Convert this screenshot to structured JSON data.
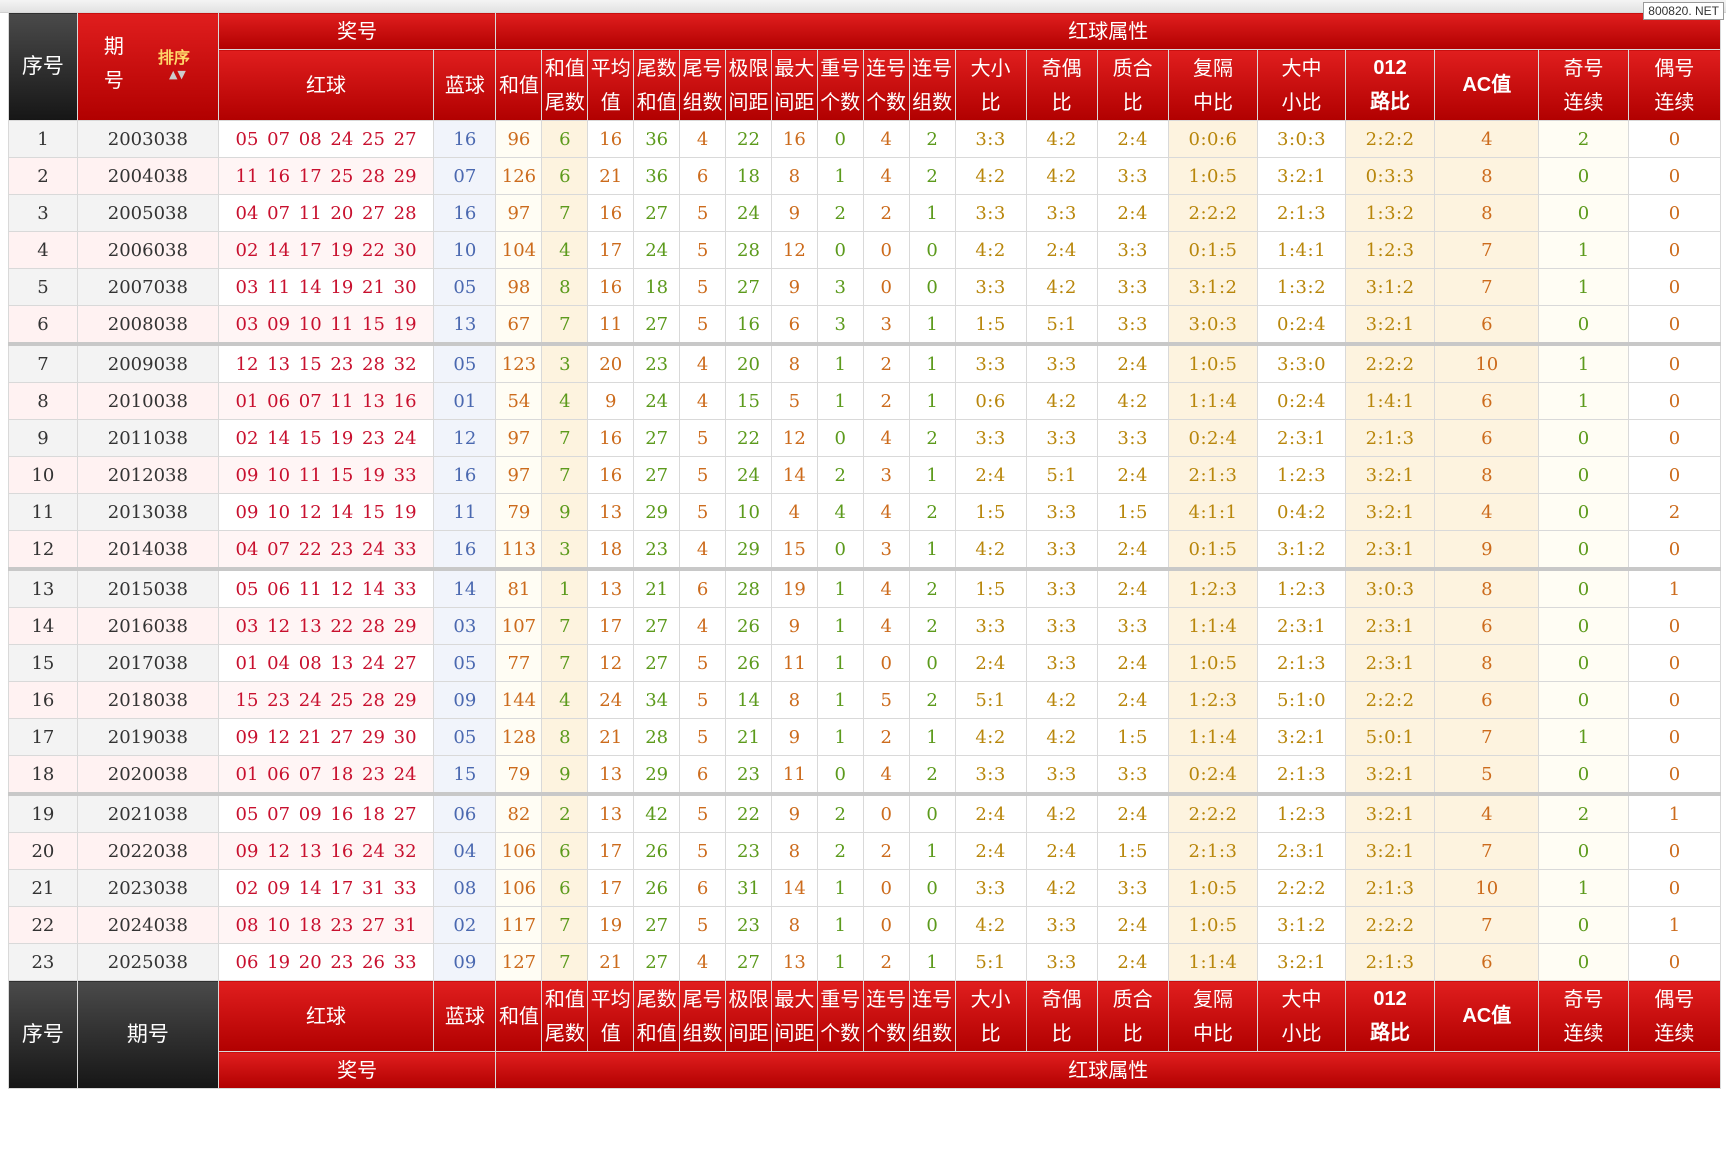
{
  "watermark": "800820. NET",
  "header": {
    "seq": "序号",
    "issue_top": "期",
    "issue_bottom": "号",
    "sort_label": "排序",
    "sort_arrows": "▲▼",
    "prize_group": "奖号",
    "attr_group": "红球属性",
    "red": "红球",
    "blue": "蓝球",
    "cols": [
      {
        "l1": "和值",
        "l2": ""
      },
      {
        "l1": "和值",
        "l2": "尾数"
      },
      {
        "l1": "平均",
        "l2": "值"
      },
      {
        "l1": "尾数",
        "l2": "和值"
      },
      {
        "l1": "尾号",
        "l2": "组数"
      },
      {
        "l1": "极限",
        "l2": "间距"
      },
      {
        "l1": "最大",
        "l2": "间距"
      },
      {
        "l1": "重号",
        "l2": "个数"
      },
      {
        "l1": "连号",
        "l2": "个数"
      },
      {
        "l1": "连号",
        "l2": "组数"
      },
      {
        "l1": "大小",
        "l2": "比"
      },
      {
        "l1": "奇偶",
        "l2": "比"
      },
      {
        "l1": "质合",
        "l2": "比"
      },
      {
        "l1": "复隔",
        "l2": "中比"
      },
      {
        "l1": "大中",
        "l2": "小比"
      },
      {
        "l1": "012",
        "l2": "路比"
      },
      {
        "l1": "AC值",
        "l2": ""
      },
      {
        "l1": "奇号",
        "l2": "连续"
      },
      {
        "l1": "偶号",
        "l2": "连续"
      }
    ]
  },
  "footer": {
    "seq": "序号",
    "issue": "期号"
  },
  "rows": [
    {
      "n": "1",
      "issue": "2003038",
      "red": "05 07 08 24 25 27",
      "blue": "16",
      "v": [
        "96",
        "6",
        "16",
        "36",
        "4",
        "22",
        "16",
        "0",
        "4",
        "2",
        "3:3",
        "4:2",
        "2:4",
        "0:0:6",
        "3:0:3",
        "2:2:2",
        "4",
        "2",
        "0"
      ]
    },
    {
      "n": "2",
      "issue": "2004038",
      "red": "11 16 17 25 28 29",
      "blue": "07",
      "v": [
        "126",
        "6",
        "21",
        "36",
        "6",
        "18",
        "8",
        "1",
        "4",
        "2",
        "4:2",
        "4:2",
        "3:3",
        "1:0:5",
        "3:2:1",
        "0:3:3",
        "8",
        "0",
        "0"
      ]
    },
    {
      "n": "3",
      "issue": "2005038",
      "red": "04 07 11 20 27 28",
      "blue": "16",
      "v": [
        "97",
        "7",
        "16",
        "27",
        "5",
        "24",
        "9",
        "2",
        "2",
        "1",
        "3:3",
        "3:3",
        "2:4",
        "2:2:2",
        "2:1:3",
        "1:3:2",
        "8",
        "0",
        "0"
      ]
    },
    {
      "n": "4",
      "issue": "2006038",
      "red": "02 14 17 19 22 30",
      "blue": "10",
      "v": [
        "104",
        "4",
        "17",
        "24",
        "5",
        "28",
        "12",
        "0",
        "0",
        "0",
        "4:2",
        "2:4",
        "3:3",
        "0:1:5",
        "1:4:1",
        "1:2:3",
        "7",
        "1",
        "0"
      ]
    },
    {
      "n": "5",
      "issue": "2007038",
      "red": "03 11 14 19 21 30",
      "blue": "05",
      "v": [
        "98",
        "8",
        "16",
        "18",
        "5",
        "27",
        "9",
        "3",
        "0",
        "0",
        "3:3",
        "4:2",
        "3:3",
        "3:1:2",
        "1:3:2",
        "3:1:2",
        "7",
        "1",
        "0"
      ]
    },
    {
      "n": "6",
      "issue": "2008038",
      "red": "03 09 10 11 15 19",
      "blue": "13",
      "v": [
        "67",
        "7",
        "11",
        "27",
        "5",
        "16",
        "6",
        "3",
        "3",
        "1",
        "1:5",
        "5:1",
        "3:3",
        "3:0:3",
        "0:2:4",
        "3:2:1",
        "6",
        "0",
        "0"
      ]
    },
    {
      "n": "7",
      "issue": "2009038",
      "red": "12 13 15 23 28 32",
      "blue": "05",
      "v": [
        "123",
        "3",
        "20",
        "23",
        "4",
        "20",
        "8",
        "1",
        "2",
        "1",
        "3:3",
        "3:3",
        "2:4",
        "1:0:5",
        "3:3:0",
        "2:2:2",
        "10",
        "1",
        "0"
      ]
    },
    {
      "n": "8",
      "issue": "2010038",
      "red": "01 06 07 11 13 16",
      "blue": "01",
      "v": [
        "54",
        "4",
        "9",
        "24",
        "4",
        "15",
        "5",
        "1",
        "2",
        "1",
        "0:6",
        "4:2",
        "4:2",
        "1:1:4",
        "0:2:4",
        "1:4:1",
        "6",
        "1",
        "0"
      ]
    },
    {
      "n": "9",
      "issue": "2011038",
      "red": "02 14 15 19 23 24",
      "blue": "12",
      "v": [
        "97",
        "7",
        "16",
        "27",
        "5",
        "22",
        "12",
        "0",
        "4",
        "2",
        "3:3",
        "3:3",
        "3:3",
        "0:2:4",
        "2:3:1",
        "2:1:3",
        "6",
        "0",
        "0"
      ]
    },
    {
      "n": "10",
      "issue": "2012038",
      "red": "09 10 11 15 19 33",
      "blue": "16",
      "v": [
        "97",
        "7",
        "16",
        "27",
        "5",
        "24",
        "14",
        "2",
        "3",
        "1",
        "2:4",
        "5:1",
        "2:4",
        "2:1:3",
        "1:2:3",
        "3:2:1",
        "8",
        "0",
        "0"
      ]
    },
    {
      "n": "11",
      "issue": "2013038",
      "red": "09 10 12 14 15 19",
      "blue": "11",
      "v": [
        "79",
        "9",
        "13",
        "29",
        "5",
        "10",
        "4",
        "4",
        "4",
        "2",
        "1:5",
        "3:3",
        "1:5",
        "4:1:1",
        "0:4:2",
        "3:2:1",
        "4",
        "0",
        "2"
      ]
    },
    {
      "n": "12",
      "issue": "2014038",
      "red": "04 07 22 23 24 33",
      "blue": "16",
      "v": [
        "113",
        "3",
        "18",
        "23",
        "4",
        "29",
        "15",
        "0",
        "3",
        "1",
        "4:2",
        "3:3",
        "2:4",
        "0:1:5",
        "3:1:2",
        "2:3:1",
        "9",
        "0",
        "0"
      ]
    },
    {
      "n": "13",
      "issue": "2015038",
      "red": "05 06 11 12 14 33",
      "blue": "14",
      "v": [
        "81",
        "1",
        "13",
        "21",
        "6",
        "28",
        "19",
        "1",
        "4",
        "2",
        "1:5",
        "3:3",
        "2:4",
        "1:2:3",
        "1:2:3",
        "3:0:3",
        "8",
        "0",
        "1"
      ]
    },
    {
      "n": "14",
      "issue": "2016038",
      "red": "03 12 13 22 28 29",
      "blue": "03",
      "v": [
        "107",
        "7",
        "17",
        "27",
        "4",
        "26",
        "9",
        "1",
        "4",
        "2",
        "3:3",
        "3:3",
        "3:3",
        "1:1:4",
        "2:3:1",
        "2:3:1",
        "6",
        "0",
        "0"
      ]
    },
    {
      "n": "15",
      "issue": "2017038",
      "red": "01 04 08 13 24 27",
      "blue": "05",
      "v": [
        "77",
        "7",
        "12",
        "27",
        "5",
        "26",
        "11",
        "1",
        "0",
        "0",
        "2:4",
        "3:3",
        "2:4",
        "1:0:5",
        "2:1:3",
        "2:3:1",
        "8",
        "0",
        "0"
      ]
    },
    {
      "n": "16",
      "issue": "2018038",
      "red": "15 23 24 25 28 29",
      "blue": "09",
      "v": [
        "144",
        "4",
        "24",
        "34",
        "5",
        "14",
        "8",
        "1",
        "5",
        "2",
        "5:1",
        "4:2",
        "2:4",
        "1:2:3",
        "5:1:0",
        "2:2:2",
        "6",
        "0",
        "0"
      ]
    },
    {
      "n": "17",
      "issue": "2019038",
      "red": "09 12 21 27 29 30",
      "blue": "05",
      "v": [
        "128",
        "8",
        "21",
        "28",
        "5",
        "21",
        "9",
        "1",
        "2",
        "1",
        "4:2",
        "4:2",
        "1:5",
        "1:1:4",
        "3:2:1",
        "5:0:1",
        "7",
        "1",
        "0"
      ]
    },
    {
      "n": "18",
      "issue": "2020038",
      "red": "01 06 07 18 23 24",
      "blue": "15",
      "v": [
        "79",
        "9",
        "13",
        "29",
        "6",
        "23",
        "11",
        "0",
        "4",
        "2",
        "3:3",
        "3:3",
        "3:3",
        "0:2:4",
        "2:1:3",
        "3:2:1",
        "5",
        "0",
        "0"
      ]
    },
    {
      "n": "19",
      "issue": "2021038",
      "red": "05 07 09 16 18 27",
      "blue": "06",
      "v": [
        "82",
        "2",
        "13",
        "42",
        "5",
        "22",
        "9",
        "2",
        "0",
        "0",
        "2:4",
        "4:2",
        "2:4",
        "2:2:2",
        "1:2:3",
        "3:2:1",
        "4",
        "2",
        "1"
      ]
    },
    {
      "n": "20",
      "issue": "2022038",
      "red": "09 12 13 16 24 32",
      "blue": "04",
      "v": [
        "106",
        "6",
        "17",
        "26",
        "5",
        "23",
        "8",
        "2",
        "2",
        "1",
        "2:4",
        "2:4",
        "1:5",
        "2:1:3",
        "2:3:1",
        "3:2:1",
        "7",
        "0",
        "0"
      ]
    },
    {
      "n": "21",
      "issue": "2023038",
      "red": "02 09 14 17 31 33",
      "blue": "08",
      "v": [
        "106",
        "6",
        "17",
        "26",
        "6",
        "31",
        "14",
        "1",
        "0",
        "0",
        "3:3",
        "4:2",
        "3:3",
        "1:0:5",
        "2:2:2",
        "2:1:3",
        "10",
        "1",
        "0"
      ]
    },
    {
      "n": "22",
      "issue": "2024038",
      "red": "08 10 18 23 27 31",
      "blue": "02",
      "v": [
        "117",
        "7",
        "19",
        "27",
        "5",
        "23",
        "8",
        "1",
        "0",
        "0",
        "4:2",
        "3:3",
        "2:4",
        "1:0:5",
        "3:1:2",
        "2:2:2",
        "7",
        "0",
        "1"
      ]
    },
    {
      "n": "23",
      "issue": "2025038",
      "red": "06 19 20 23 26 33",
      "blue": "09",
      "v": [
        "127",
        "7",
        "21",
        "27",
        "4",
        "27",
        "13",
        "1",
        "2",
        "1",
        "5:1",
        "3:3",
        "2:4",
        "1:1:4",
        "3:2:1",
        "2:1:3",
        "6",
        "0",
        "0"
      ]
    }
  ]
}
